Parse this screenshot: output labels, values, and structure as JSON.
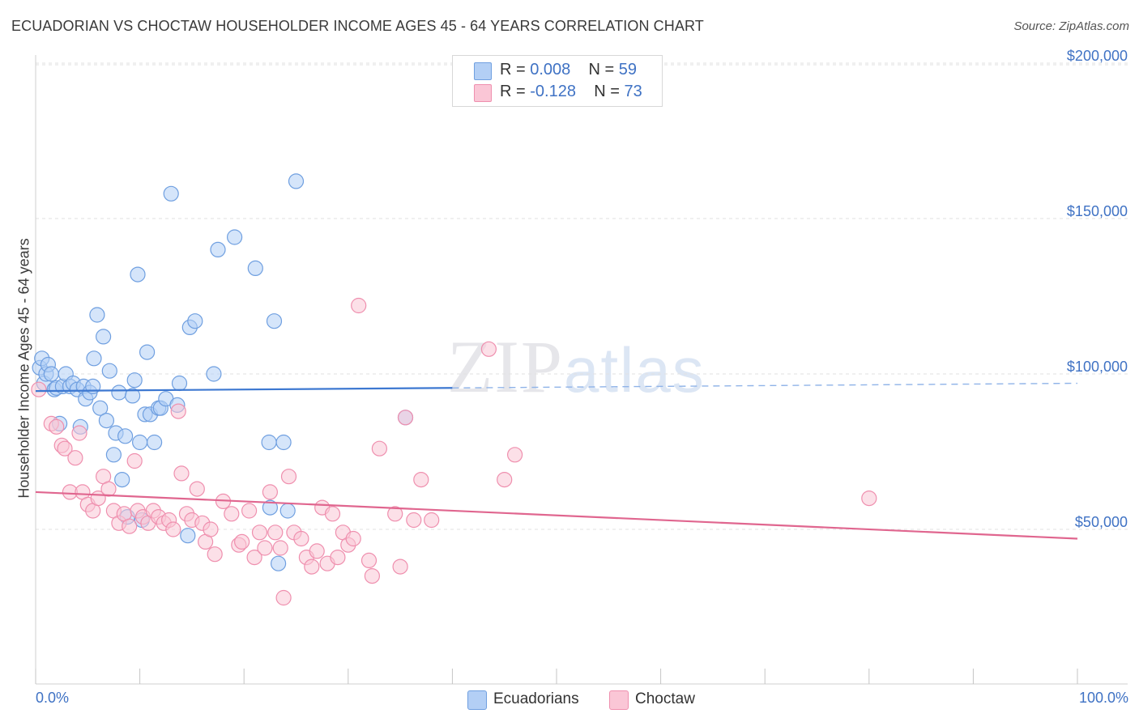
{
  "title": "ECUADORIAN VS CHOCTAW HOUSEHOLDER INCOME AGES 45 - 64 YEARS CORRELATION CHART",
  "source": "Source: ZipAtlas.com",
  "watermark": {
    "zip": "ZIP",
    "atlas": "atlas"
  },
  "legend": {
    "rows": [
      {
        "r_label": "R = ",
        "r_value": "0.008",
        "n_label": "N = ",
        "n_value": "59",
        "color": "#b3cff5",
        "border": "#6f9fe0"
      },
      {
        "r_label": "R = ",
        "r_value": "-0.128",
        "n_label": "N = ",
        "n_value": "73",
        "color": "#fac6d6",
        "border": "#ef8fae"
      }
    ]
  },
  "bottom_legend": [
    {
      "label": "Ecuadorians",
      "color": "#b3cff5",
      "border": "#6f9fe0"
    },
    {
      "label": "Choctaw",
      "color": "#fac6d6",
      "border": "#ef8fae"
    }
  ],
  "chart_data": {
    "type": "scatter",
    "xlabel": "",
    "ylabel": "Householder Income Ages 45 - 64 years",
    "x_tick_labels": [
      "0.0%",
      "100.0%"
    ],
    "y_ticks": [
      50000,
      100000,
      150000,
      200000
    ],
    "y_tick_labels": [
      "$50,000",
      "$100,000",
      "$150,000",
      "$200,000"
    ],
    "xlim": [
      0,
      100
    ],
    "ylim": [
      0,
      205000
    ],
    "grid": true,
    "legend_position": "top-center",
    "series": [
      {
        "name": "Ecuadorians",
        "color": "#6f9fe0",
        "fill": "#b3cff5",
        "trend": {
          "x": [
            0,
            100
          ],
          "y": [
            94500,
            97000
          ]
        },
        "points": [
          [
            0.4,
            102000
          ],
          [
            0.6,
            105000
          ],
          [
            0.8,
            97000
          ],
          [
            1.0,
            100000
          ],
          [
            1.2,
            103000
          ],
          [
            1.5,
            100000
          ],
          [
            1.8,
            95000
          ],
          [
            2.0,
            95500
          ],
          [
            2.3,
            84000
          ],
          [
            2.6,
            96000
          ],
          [
            2.9,
            100000
          ],
          [
            3.3,
            96000
          ],
          [
            3.6,
            97000
          ],
          [
            4.0,
            95000
          ],
          [
            4.3,
            83000
          ],
          [
            4.6,
            96000
          ],
          [
            4.8,
            92000
          ],
          [
            5.2,
            94000
          ],
          [
            5.5,
            96000
          ],
          [
            5.6,
            105000
          ],
          [
            5.9,
            119000
          ],
          [
            6.2,
            89000
          ],
          [
            6.5,
            112000
          ],
          [
            6.8,
            85000
          ],
          [
            7.1,
            101000
          ],
          [
            7.5,
            74000
          ],
          [
            7.7,
            81000
          ],
          [
            8.0,
            94000
          ],
          [
            8.3,
            66000
          ],
          [
            8.6,
            80000
          ],
          [
            8.8,
            54000
          ],
          [
            9.3,
            93000
          ],
          [
            9.5,
            98000
          ],
          [
            9.8,
            132000
          ],
          [
            10.0,
            78000
          ],
          [
            10.2,
            53000
          ],
          [
            10.5,
            87000
          ],
          [
            10.7,
            107000
          ],
          [
            11.0,
            87000
          ],
          [
            11.4,
            78000
          ],
          [
            11.8,
            89000
          ],
          [
            12.0,
            89000
          ],
          [
            12.5,
            92000
          ],
          [
            13.0,
            158000
          ],
          [
            13.6,
            90000
          ],
          [
            13.8,
            97000
          ],
          [
            14.6,
            48000
          ],
          [
            14.8,
            115000
          ],
          [
            15.3,
            117000
          ],
          [
            17.1,
            100000
          ],
          [
            17.5,
            140000
          ],
          [
            19.1,
            144000
          ],
          [
            21.1,
            134000
          ],
          [
            22.4,
            78000
          ],
          [
            22.5,
            57000
          ],
          [
            22.9,
            117000
          ],
          [
            23.3,
            39000
          ],
          [
            23.8,
            78000
          ],
          [
            24.2,
            56000
          ],
          [
            25.0,
            162000
          ],
          [
            35.5,
            86000
          ]
        ]
      },
      {
        "name": "Choctaw",
        "color": "#ef8fae",
        "fill": "#fac6d6",
        "trend": {
          "x": [
            0,
            100
          ],
          "y": [
            62000,
            47000
          ]
        },
        "points": [
          [
            0.3,
            95000
          ],
          [
            1.5,
            84000
          ],
          [
            2.0,
            83000
          ],
          [
            2.5,
            77000
          ],
          [
            2.8,
            76000
          ],
          [
            3.3,
            62000
          ],
          [
            3.8,
            73000
          ],
          [
            4.2,
            81000
          ],
          [
            4.5,
            62000
          ],
          [
            5.0,
            58000
          ],
          [
            5.5,
            56000
          ],
          [
            6.0,
            60000
          ],
          [
            6.5,
            67000
          ],
          [
            7.0,
            63000
          ],
          [
            7.5,
            56000
          ],
          [
            8.0,
            52000
          ],
          [
            8.5,
            55000
          ],
          [
            9.0,
            51000
          ],
          [
            9.5,
            72000
          ],
          [
            9.8,
            56000
          ],
          [
            10.3,
            54000
          ],
          [
            10.8,
            52000
          ],
          [
            11.3,
            56000
          ],
          [
            11.8,
            54000
          ],
          [
            12.3,
            52000
          ],
          [
            12.8,
            53000
          ],
          [
            13.2,
            50000
          ],
          [
            13.7,
            88000
          ],
          [
            14.0,
            68000
          ],
          [
            14.5,
            55000
          ],
          [
            15.0,
            53000
          ],
          [
            15.5,
            63000
          ],
          [
            16.0,
            52000
          ],
          [
            16.3,
            46000
          ],
          [
            16.8,
            50000
          ],
          [
            17.2,
            42000
          ],
          [
            18.0,
            59000
          ],
          [
            18.8,
            55000
          ],
          [
            19.5,
            45000
          ],
          [
            19.8,
            46000
          ],
          [
            20.5,
            56000
          ],
          [
            21.0,
            41000
          ],
          [
            21.5,
            49000
          ],
          [
            22.0,
            44000
          ],
          [
            22.5,
            62000
          ],
          [
            23.0,
            49000
          ],
          [
            23.5,
            44000
          ],
          [
            23.8,
            28000
          ],
          [
            24.3,
            67000
          ],
          [
            24.8,
            49000
          ],
          [
            25.5,
            47000
          ],
          [
            26.0,
            41000
          ],
          [
            26.5,
            38000
          ],
          [
            27.0,
            43000
          ],
          [
            27.5,
            57000
          ],
          [
            28.0,
            39000
          ],
          [
            28.5,
            55000
          ],
          [
            29.0,
            41000
          ],
          [
            29.5,
            49000
          ],
          [
            30.0,
            45000
          ],
          [
            30.5,
            47000
          ],
          [
            31.0,
            122000
          ],
          [
            32.0,
            40000
          ],
          [
            32.3,
            35000
          ],
          [
            33.0,
            76000
          ],
          [
            34.5,
            55000
          ],
          [
            35.0,
            38000
          ],
          [
            35.5,
            86000
          ],
          [
            36.3,
            53000
          ],
          [
            37.0,
            66000
          ],
          [
            38.0,
            53000
          ],
          [
            43.5,
            108000
          ],
          [
            45.0,
            66000
          ],
          [
            46.0,
            74000
          ],
          [
            80.0,
            60000
          ]
        ]
      }
    ]
  }
}
